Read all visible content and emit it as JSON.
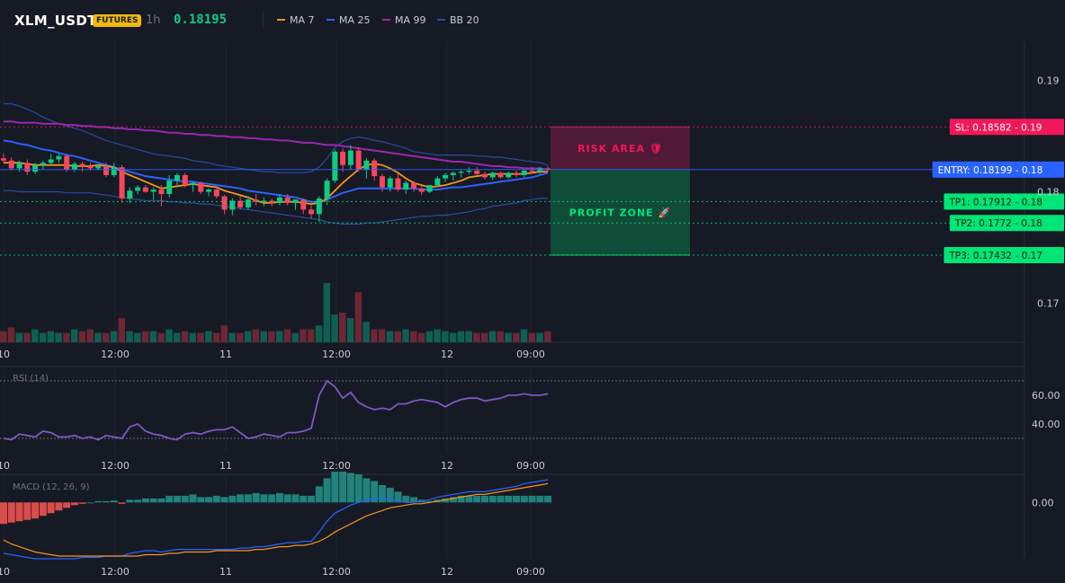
{
  "header": {
    "symbol": "XLM_USDT",
    "badge": "FUTURES",
    "timeframe": "1h",
    "last_price": "0.18195",
    "indicators": [
      {
        "label": "MA 7",
        "color": "#f7931a"
      },
      {
        "label": "MA 25",
        "color": "#2962ff"
      },
      {
        "label": "MA 99",
        "color": "#9c27b0"
      },
      {
        "label": "BB 20",
        "color": "#2b4a9e"
      }
    ]
  },
  "colors": {
    "up": "#0ecb81",
    "down": "#f6465d",
    "ma7": "#f7931a",
    "ma25": "#2962ff",
    "ma99": "#9c27b0",
    "bb": "#2b4a9e",
    "rsi": "#7e57c2",
    "macd": "#2962ff",
    "signal": "#f7931a"
  },
  "chart_data": [
    {
      "type": "candlestick",
      "name": "price",
      "x_tick_labels": [
        "10",
        "12:00",
        "11",
        "12:00",
        "12",
        "09:00"
      ],
      "y_tick_labels": [
        "0.19",
        "0.18",
        "0.17"
      ],
      "ylim": [
        0.1665,
        0.1935
      ],
      "candles": [
        [
          0.183,
          0.1834,
          0.1826,
          0.1828
        ],
        [
          0.1828,
          0.1831,
          0.1819,
          0.1821
        ],
        [
          0.1821,
          0.1828,
          0.1818,
          0.1826
        ],
        [
          0.1826,
          0.1829,
          0.1815,
          0.1818
        ],
        [
          0.1818,
          0.1826,
          0.1816,
          0.1824
        ],
        [
          0.1824,
          0.1828,
          0.182,
          0.1826
        ],
        [
          0.1826,
          0.1834,
          0.1824,
          0.1829
        ],
        [
          0.1829,
          0.1834,
          0.1826,
          0.1832
        ],
        [
          0.1832,
          0.1834,
          0.1818,
          0.182
        ],
        [
          0.182,
          0.1827,
          0.1818,
          0.1825
        ],
        [
          0.1825,
          0.1827,
          0.1818,
          0.1823
        ],
        [
          0.1823,
          0.1826,
          0.1819,
          0.1821
        ],
        [
          0.1821,
          0.1825,
          0.1819,
          0.1823
        ],
        [
          0.1823,
          0.1826,
          0.1813,
          0.1815
        ],
        [
          0.1815,
          0.1826,
          0.1813,
          0.1822
        ],
        [
          0.1822,
          0.1824,
          0.179,
          0.1794
        ],
        [
          0.1794,
          0.1804,
          0.179,
          0.1801
        ],
        [
          0.1801,
          0.1806,
          0.1798,
          0.1804
        ],
        [
          0.1804,
          0.1806,
          0.1799,
          0.18
        ],
        [
          0.18,
          0.1804,
          0.1793,
          0.1802
        ],
        [
          0.1802,
          0.1806,
          0.1787,
          0.1798
        ],
        [
          0.1798,
          0.1815,
          0.1795,
          0.181
        ],
        [
          0.181,
          0.1817,
          0.1806,
          0.1815
        ],
        [
          0.1815,
          0.1817,
          0.1804,
          0.1806
        ],
        [
          0.1806,
          0.1809,
          0.18,
          0.1808
        ],
        [
          0.1808,
          0.1809,
          0.1798,
          0.18
        ],
        [
          0.18,
          0.1803,
          0.1796,
          0.1802
        ],
        [
          0.1802,
          0.1805,
          0.1794,
          0.1796
        ],
        [
          0.1796,
          0.1797,
          0.178,
          0.1784
        ],
        [
          0.1784,
          0.1794,
          0.1779,
          0.1792
        ],
        [
          0.1792,
          0.1796,
          0.1784,
          0.1786
        ],
        [
          0.1786,
          0.1796,
          0.1784,
          0.1793
        ],
        [
          0.1793,
          0.1798,
          0.1788,
          0.1791
        ],
        [
          0.1791,
          0.1795,
          0.1787,
          0.1792
        ],
        [
          0.1792,
          0.1794,
          0.1787,
          0.179
        ],
        [
          0.179,
          0.1798,
          0.1788,
          0.1795
        ],
        [
          0.1795,
          0.1798,
          0.1788,
          0.179
        ],
        [
          0.179,
          0.1793,
          0.1784,
          0.1793
        ],
        [
          0.1793,
          0.1794,
          0.178,
          0.1784
        ],
        [
          0.1784,
          0.1788,
          0.1776,
          0.178
        ],
        [
          0.178,
          0.1796,
          0.1773,
          0.1794
        ],
        [
          0.1794,
          0.1812,
          0.1788,
          0.181
        ],
        [
          0.181,
          0.1838,
          0.1808,
          0.1836
        ],
        [
          0.1836,
          0.1839,
          0.1818,
          0.1824
        ],
        [
          0.1824,
          0.1842,
          0.182,
          0.1837
        ],
        [
          0.1837,
          0.184,
          0.1818,
          0.182
        ],
        [
          0.182,
          0.183,
          0.1812,
          0.1828
        ],
        [
          0.1828,
          0.183,
          0.181,
          0.1814
        ],
        [
          0.1814,
          0.1816,
          0.18,
          0.1804
        ],
        [
          0.1804,
          0.1814,
          0.18,
          0.1812
        ],
        [
          0.1812,
          0.1816,
          0.18,
          0.1802
        ],
        [
          0.1802,
          0.181,
          0.1798,
          0.1808
        ],
        [
          0.1808,
          0.181,
          0.18,
          0.1803
        ],
        [
          0.1803,
          0.1805,
          0.1797,
          0.18
        ],
        [
          0.18,
          0.1806,
          0.1799,
          0.1806
        ],
        [
          0.1806,
          0.1814,
          0.1804,
          0.1812
        ],
        [
          0.1812,
          0.1817,
          0.1809,
          0.1815
        ],
        [
          0.1815,
          0.1818,
          0.181,
          0.1817
        ],
        [
          0.1817,
          0.182,
          0.1813,
          0.1818
        ],
        [
          0.1818,
          0.1822,
          0.1816,
          0.1819
        ],
        [
          0.1819,
          0.1822,
          0.1815,
          0.1816
        ],
        [
          0.1816,
          0.1818,
          0.1811,
          0.1813
        ],
        [
          0.1813,
          0.1818,
          0.1811,
          0.1817
        ],
        [
          0.1817,
          0.1818,
          0.1812,
          0.1813
        ],
        [
          0.1813,
          0.1818,
          0.1812,
          0.1817
        ],
        [
          0.1817,
          0.1819,
          0.1813,
          0.1815
        ],
        [
          0.1815,
          0.182,
          0.1813,
          0.1819
        ],
        [
          0.1819,
          0.1822,
          0.1816,
          0.1818
        ],
        [
          0.1818,
          0.1822,
          0.1816,
          0.1821
        ],
        [
          0.1821,
          0.1823,
          0.1818,
          0.182
        ]
      ],
      "ma7": [
        0.1826,
        0.1826,
        0.1826,
        0.1825,
        0.1824,
        0.1824,
        0.1824,
        0.1824,
        0.1824,
        0.1823,
        0.1823,
        0.1823,
        0.1824,
        0.1823,
        0.1822,
        0.1818,
        0.1815,
        0.1812,
        0.1809,
        0.1806,
        0.1803,
        0.1804,
        0.1805,
        0.1806,
        0.1807,
        0.1806,
        0.1805,
        0.1804,
        0.1801,
        0.1799,
        0.1797,
        0.1795,
        0.1792,
        0.179,
        0.179,
        0.1791,
        0.1791,
        0.1791,
        0.179,
        0.1789,
        0.179,
        0.1794,
        0.1801,
        0.1808,
        0.1814,
        0.182,
        0.1824,
        0.1825,
        0.1824,
        0.1821,
        0.1817,
        0.1812,
        0.1808,
        0.1806,
        0.1804,
        0.1805,
        0.1806,
        0.1808,
        0.181,
        0.1813,
        0.1814,
        0.1815,
        0.1816,
        0.1816,
        0.1816,
        0.1816,
        0.1816,
        0.1817,
        0.1818,
        0.1818
      ],
      "ma25": [
        0.1846,
        0.1845,
        0.1843,
        0.1842,
        0.184,
        0.1838,
        0.1837,
        0.1835,
        0.1833,
        0.1832,
        0.183,
        0.1828,
        0.1826,
        0.1824,
        0.1822,
        0.182,
        0.1818,
        0.1816,
        0.1814,
        0.1813,
        0.1812,
        0.1811,
        0.181,
        0.1809,
        0.1809,
        0.1808,
        0.1807,
        0.1806,
        0.1805,
        0.1804,
        0.1803,
        0.1801,
        0.18,
        0.1799,
        0.1798,
        0.1797,
        0.1796,
        0.1795,
        0.1793,
        0.1791,
        0.1791,
        0.1793,
        0.1796,
        0.1799,
        0.1801,
        0.1803,
        0.1803,
        0.1803,
        0.1803,
        0.1803,
        0.1803,
        0.1803,
        0.1803,
        0.1802,
        0.1802,
        0.1802,
        0.1803,
        0.1804,
        0.1804,
        0.1805,
        0.1806,
        0.1807,
        0.1808,
        0.1809,
        0.181,
        0.1811,
        0.1812,
        0.1813,
        0.1815,
        0.1817
      ],
      "ma99": [
        0.1863,
        0.1863,
        0.1862,
        0.1862,
        0.1862,
        0.1861,
        0.1861,
        0.1861,
        0.186,
        0.186,
        0.1859,
        0.1859,
        0.1858,
        0.1858,
        0.1857,
        0.1857,
        0.1856,
        0.1856,
        0.1855,
        0.1855,
        0.1854,
        0.1853,
        0.1853,
        0.1852,
        0.1852,
        0.1851,
        0.1851,
        0.185,
        0.185,
        0.1849,
        0.1849,
        0.1848,
        0.1848,
        0.1847,
        0.1847,
        0.1846,
        0.1846,
        0.1845,
        0.1844,
        0.1844,
        0.1843,
        0.1842,
        0.1842,
        0.1841,
        0.184,
        0.1839,
        0.1838,
        0.1837,
        0.1836,
        0.1835,
        0.1834,
        0.1833,
        0.1832,
        0.1831,
        0.183,
        0.1829,
        0.1828,
        0.1827,
        0.1827,
        0.1826,
        0.1825,
        0.1824,
        0.1823,
        0.1823,
        0.1822,
        0.1822,
        0.1821,
        0.1821,
        0.1821,
        0.182
      ],
      "bb_upper": [
        0.1879,
        0.1879,
        0.1877,
        0.1874,
        0.1871,
        0.1867,
        0.1864,
        0.1861,
        0.1859,
        0.1857,
        0.1855,
        0.1852,
        0.1849,
        0.1846,
        0.1844,
        0.1842,
        0.184,
        0.1838,
        0.1836,
        0.1834,
        0.1833,
        0.1832,
        0.1831,
        0.183,
        0.1828,
        0.1827,
        0.1826,
        0.1824,
        0.1823,
        0.1822,
        0.1821,
        0.182,
        0.1819,
        0.1818,
        0.1818,
        0.1817,
        0.1817,
        0.1817,
        0.1817,
        0.1818,
        0.1822,
        0.183,
        0.184,
        0.1845,
        0.1848,
        0.1849,
        0.1848,
        0.1846,
        0.1845,
        0.1843,
        0.1841,
        0.1839,
        0.1836,
        0.1835,
        0.1834,
        0.1833,
        0.1833,
        0.1833,
        0.1833,
        0.1833,
        0.1832,
        0.1832,
        0.1831,
        0.1831,
        0.183,
        0.1829,
        0.1828,
        0.1827,
        0.1826,
        0.1824
      ],
      "bb_lower": [
        0.1801,
        0.1801,
        0.18,
        0.18,
        0.18,
        0.18,
        0.18,
        0.18,
        0.1799,
        0.1799,
        0.1799,
        0.1799,
        0.1798,
        0.1797,
        0.1796,
        0.1795,
        0.1794,
        0.1793,
        0.1792,
        0.1792,
        0.1792,
        0.1791,
        0.1791,
        0.179,
        0.179,
        0.1789,
        0.1789,
        0.1788,
        0.1787,
        0.1786,
        0.1785,
        0.1784,
        0.1783,
        0.1782,
        0.1781,
        0.178,
        0.1779,
        0.1778,
        0.1777,
        0.1776,
        0.1775,
        0.1773,
        0.1772,
        0.1771,
        0.1771,
        0.1771,
        0.1772,
        0.1772,
        0.1773,
        0.1774,
        0.1775,
        0.1776,
        0.1777,
        0.1778,
        0.1778,
        0.1779,
        0.1779,
        0.178,
        0.1781,
        0.1782,
        0.1784,
        0.1785,
        0.1787,
        0.1788,
        0.1789,
        0.179,
        0.1792,
        0.1793,
        0.1794,
        0.1794
      ],
      "volume": [
        12,
        16,
        10,
        10,
        14,
        10,
        12,
        10,
        10,
        14,
        12,
        14,
        10,
        10,
        12,
        26,
        12,
        10,
        12,
        12,
        10,
        14,
        10,
        12,
        10,
        10,
        12,
        10,
        18,
        10,
        10,
        12,
        14,
        12,
        12,
        12,
        14,
        10,
        14,
        14,
        18,
        64,
        30,
        32,
        26,
        54,
        22,
        14,
        14,
        12,
        12,
        14,
        12,
        10,
        12,
        14,
        12,
        10,
        12,
        12,
        10,
        10,
        12,
        12,
        10,
        10,
        14,
        10,
        10,
        12
      ],
      "levels": [
        {
          "label": "SL: 0.18582",
          "tag": "0.19",
          "value": 0.18582,
          "color": "#f0185a"
        },
        {
          "label": "ENTRY: 0.18199",
          "tag": "0.18",
          "value": 0.18199,
          "color": "#2962ff"
        },
        {
          "label": "TP1: 0.17912",
          "tag": "0.18",
          "value": 0.17912,
          "color": "#00e676"
        },
        {
          "label": "TP2: 0.1772",
          "tag": "0.18",
          "value": 0.1772,
          "color": "#00e676"
        },
        {
          "label": "TP3: 0.17432",
          "tag": "0.17",
          "value": 0.17432,
          "color": "#00e676"
        }
      ],
      "zones": [
        {
          "label": "RISK AREA 🛡",
          "from": 0.18199,
          "to": 0.18582,
          "color": "#e91e63"
        },
        {
          "label": "PROFIT ZONE 🚀",
          "from": 0.17432,
          "to": 0.18199,
          "color": "#00e676"
        }
      ]
    },
    {
      "type": "line",
      "name": "rsi",
      "title": "RSI (14)",
      "y_tick_labels": [
        "60.00",
        "40.00"
      ],
      "ylim": [
        20,
        80
      ],
      "bands": [
        70,
        30
      ],
      "values": [
        30,
        29,
        33,
        32,
        31,
        35,
        34,
        31,
        31,
        32,
        30,
        31,
        29,
        32,
        31,
        30,
        38,
        40,
        35,
        33,
        32,
        30,
        29,
        33,
        34,
        33,
        35,
        36,
        36,
        38,
        34,
        30,
        31,
        33,
        32,
        31,
        34,
        34,
        35,
        37,
        60,
        70,
        66,
        58,
        62,
        55,
        52,
        50,
        51,
        50,
        54,
        54,
        56,
        57,
        56,
        55,
        52,
        55,
        57,
        58,
        58,
        56,
        57,
        58,
        60,
        60,
        61,
        60,
        60,
        61
      ]
    },
    {
      "type": "bar",
      "name": "macd",
      "title": "MACD (12, 26, 9)",
      "y_tick_labels": [
        "0.00"
      ],
      "ylim": [
        -0.0042,
        0.0021
      ],
      "histogram": [
        -1.6,
        -1.5,
        -1.4,
        -1.3,
        -1.2,
        -1.0,
        -0.8,
        -0.6,
        -0.4,
        -0.2,
        -0.1,
        0.0,
        0.1,
        0.1,
        0.15,
        -0.1,
        0.2,
        0.2,
        0.3,
        0.3,
        0.3,
        0.5,
        0.5,
        0.5,
        0.6,
        0.4,
        0.4,
        0.5,
        0.4,
        0.5,
        0.6,
        0.6,
        0.7,
        0.6,
        0.6,
        0.7,
        0.6,
        0.6,
        0.5,
        0.5,
        1.2,
        1.8,
        2.3,
        2.3,
        2.2,
        2.1,
        1.8,
        1.6,
        1.3,
        1.1,
        0.8,
        0.5,
        0.4,
        0.2,
        0.1,
        0.2,
        0.3,
        0.4,
        0.5,
        0.5,
        0.5,
        0.5,
        0.5,
        0.5,
        0.5,
        0.5,
        0.5,
        0.5,
        0.5,
        0.5
      ],
      "macd_line": [
        -3.8,
        -3.9,
        -4.0,
        -4.1,
        -4.2,
        -4.2,
        -4.2,
        -4.2,
        -4.2,
        -4.2,
        -4.1,
        -4.1,
        -4.1,
        -4.0,
        -4.0,
        -4.0,
        -3.8,
        -3.7,
        -3.6,
        -3.6,
        -3.7,
        -3.6,
        -3.5,
        -3.5,
        -3.5,
        -3.5,
        -3.5,
        -3.5,
        -3.5,
        -3.5,
        -3.4,
        -3.4,
        -3.3,
        -3.3,
        -3.2,
        -3.1,
        -3.0,
        -3.0,
        -2.9,
        -2.9,
        -2.2,
        -1.4,
        -0.8,
        -0.5,
        -0.2,
        0.0,
        0.2,
        0.3,
        0.3,
        0.2,
        0.1,
        0.0,
        0.0,
        0.1,
        0.2,
        0.4,
        0.5,
        0.6,
        0.7,
        0.8,
        0.8,
        0.8,
        0.9,
        1.0,
        1.1,
        1.2,
        1.4,
        1.5,
        1.6,
        1.7
      ],
      "signal_line": [
        -2.8,
        -3.1,
        -3.3,
        -3.5,
        -3.7,
        -3.8,
        -3.9,
        -4.0,
        -4.0,
        -4.0,
        -4.0,
        -4.0,
        -4.0,
        -4.0,
        -4.0,
        -4.0,
        -4.0,
        -4.0,
        -3.9,
        -3.9,
        -3.9,
        -3.8,
        -3.8,
        -3.7,
        -3.7,
        -3.7,
        -3.7,
        -3.6,
        -3.6,
        -3.6,
        -3.6,
        -3.6,
        -3.5,
        -3.5,
        -3.4,
        -3.3,
        -3.3,
        -3.2,
        -3.2,
        -3.1,
        -2.9,
        -2.6,
        -2.2,
        -1.9,
        -1.6,
        -1.3,
        -1.0,
        -0.8,
        -0.6,
        -0.4,
        -0.3,
        -0.2,
        -0.1,
        -0.1,
        0.0,
        0.1,
        0.2,
        0.3,
        0.4,
        0.5,
        0.6,
        0.6,
        0.7,
        0.8,
        0.9,
        1.0,
        1.1,
        1.2,
        1.3,
        1.4
      ]
    }
  ]
}
